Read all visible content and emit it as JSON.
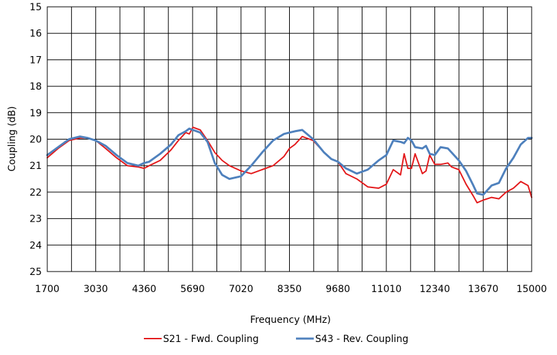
{
  "chart_data": {
    "type": "line",
    "xlabel": "Frequency (MHz)",
    "ylabel": "Coupling (dB)",
    "xlim": [
      1700,
      15000
    ],
    "ylim": [
      15,
      25
    ],
    "y_inverted": true,
    "x_ticks": [
      "1700",
      "3030",
      "4360",
      "5690",
      "7020",
      "8350",
      "9680",
      "11010",
      "12340",
      "13670",
      "15000"
    ],
    "y_ticks": [
      "15",
      "16",
      "17",
      "18",
      "19",
      "20",
      "21",
      "22",
      "23",
      "24",
      "25"
    ],
    "grid": true,
    "legend_position": "bottom",
    "series": [
      {
        "name": "S21 - Fwd. Coupling",
        "color": "#e31a1c",
        "x": [
          1700,
          2000,
          2300,
          2600,
          2800,
          3030,
          3300,
          3600,
          3900,
          4200,
          4360,
          4500,
          4800,
          5100,
          5300,
          5500,
          5600,
          5700,
          5900,
          6100,
          6300,
          6500,
          6700,
          7020,
          7300,
          7600,
          7900,
          8200,
          8350,
          8500,
          8700,
          9000,
          9300,
          9500,
          9680,
          9900,
          10200,
          10500,
          10800,
          11010,
          11200,
          11400,
          11500,
          11600,
          11700,
          11800,
          12000,
          12100,
          12200,
          12340,
          12500,
          12700,
          12800,
          13000,
          13200,
          13400,
          13500,
          13670,
          13900,
          14100,
          14300,
          14500,
          14700,
          14900,
          15000
        ],
        "values": [
          20.7,
          20.35,
          20.05,
          19.95,
          19.95,
          20.05,
          20.35,
          20.7,
          21.0,
          21.05,
          21.1,
          21.0,
          20.8,
          20.4,
          20.05,
          19.75,
          19.8,
          19.55,
          19.65,
          20.05,
          20.5,
          20.8,
          21.0,
          21.2,
          21.3,
          21.15,
          21.0,
          20.65,
          20.35,
          20.2,
          19.9,
          20.05,
          20.5,
          20.75,
          20.85,
          21.3,
          21.5,
          21.8,
          21.85,
          21.7,
          21.15,
          21.35,
          20.55,
          21.1,
          21.1,
          20.55,
          21.3,
          21.2,
          20.6,
          20.95,
          20.95,
          20.9,
          21.05,
          21.15,
          21.7,
          22.15,
          22.4,
          22.3,
          22.2,
          22.25,
          22.0,
          21.85,
          21.6,
          21.75,
          22.2
        ]
      },
      {
        "name": "S43 - Rev. Coupling",
        "color": "#4f81bd",
        "x": [
          1700,
          2000,
          2300,
          2600,
          2800,
          3030,
          3300,
          3600,
          3900,
          4200,
          4360,
          4500,
          4800,
          5100,
          5300,
          5500,
          5600,
          5700,
          5900,
          6100,
          6300,
          6500,
          6700,
          7020,
          7300,
          7600,
          7900,
          8200,
          8350,
          8500,
          8700,
          9000,
          9300,
          9500,
          9680,
          9900,
          10200,
          10500,
          10800,
          11010,
          11200,
          11400,
          11500,
          11600,
          11700,
          11800,
          12000,
          12100,
          12200,
          12340,
          12500,
          12700,
          12800,
          13000,
          13200,
          13400,
          13500,
          13670,
          13900,
          14100,
          14300,
          14500,
          14700,
          14900,
          15000
        ],
        "values": [
          20.6,
          20.3,
          20.0,
          19.9,
          19.95,
          20.05,
          20.25,
          20.6,
          20.9,
          21.0,
          20.9,
          20.85,
          20.55,
          20.2,
          19.85,
          19.7,
          19.6,
          19.65,
          19.75,
          20.1,
          20.9,
          21.35,
          21.5,
          21.4,
          21.0,
          20.5,
          20.05,
          19.8,
          19.75,
          19.7,
          19.65,
          20.0,
          20.5,
          20.75,
          20.85,
          21.1,
          21.3,
          21.15,
          20.8,
          20.6,
          20.05,
          20.1,
          20.15,
          19.95,
          20.05,
          20.3,
          20.35,
          20.25,
          20.55,
          20.6,
          20.3,
          20.35,
          20.5,
          20.8,
          21.2,
          21.75,
          22.05,
          22.1,
          21.75,
          21.65,
          21.1,
          20.7,
          20.2,
          19.95,
          19.95
        ]
      }
    ]
  }
}
